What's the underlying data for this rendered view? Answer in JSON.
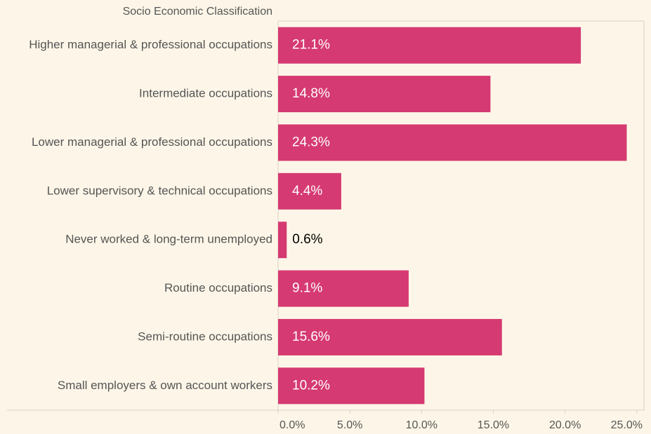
{
  "chart_data": {
    "type": "bar",
    "orientation": "horizontal",
    "y_axis_title": "Socio Economic Classification",
    "categories": [
      "Higher managerial & professional occupations",
      "Intermediate occupations",
      "Lower managerial & professional occupations",
      "Lower supervisory & technical occupations",
      "Never worked & long-term unemployed",
      "Routine occupations",
      "Semi-routine occupations",
      "Small employers & own account workers"
    ],
    "values": [
      21.1,
      14.8,
      24.3,
      4.4,
      0.6,
      9.1,
      15.6,
      10.2
    ],
    "value_labels": [
      "21.1%",
      "14.8%",
      "24.3%",
      "4.4%",
      "0.6%",
      "9.1%",
      "15.6%",
      "10.2%"
    ],
    "color": "#d63a72",
    "xlim": [
      0,
      25.5
    ],
    "xticks": [
      {
        "value": 0,
        "label": "0.0%"
      },
      {
        "value": 5,
        "label": "5.0%"
      },
      {
        "value": 10,
        "label": "10.0%"
      },
      {
        "value": 15,
        "label": "15.0%"
      },
      {
        "value": 20,
        "label": "20.0%"
      },
      {
        "value": 25,
        "label": "25.0%"
      }
    ],
    "grid": false
  }
}
